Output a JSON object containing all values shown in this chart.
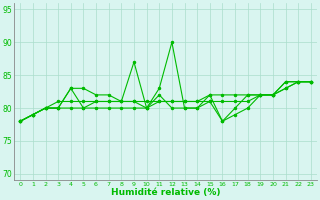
{
  "title": "",
  "xlabel": "Humidité relative (%)",
  "ylabel": "",
  "xlim": [
    -0.5,
    23.5
  ],
  "ylim": [
    69,
    96
  ],
  "yticks": [
    70,
    75,
    80,
    85,
    90,
    95
  ],
  "xticks": [
    0,
    1,
    2,
    3,
    4,
    5,
    6,
    7,
    8,
    9,
    10,
    11,
    12,
    13,
    14,
    15,
    16,
    17,
    18,
    19,
    20,
    21,
    22,
    23
  ],
  "bg_color": "#d9f5f0",
  "grid_color": "#aaddcc",
  "line_color": "#00bb00",
  "lines": [
    [
      78,
      79,
      80,
      80,
      83,
      83,
      82,
      82,
      81,
      87,
      80,
      83,
      90,
      80,
      80,
      81,
      78,
      79,
      80,
      82,
      82,
      84,
      84,
      84
    ],
    [
      78,
      79,
      80,
      80,
      83,
      80,
      81,
      81,
      81,
      81,
      80,
      82,
      80,
      80,
      80,
      82,
      78,
      80,
      82,
      82,
      82,
      84,
      84,
      84
    ],
    [
      78,
      79,
      80,
      81,
      81,
      81,
      81,
      81,
      81,
      81,
      81,
      81,
      81,
      81,
      81,
      81,
      81,
      81,
      81,
      82,
      82,
      83,
      84,
      84
    ],
    [
      78,
      79,
      80,
      80,
      80,
      80,
      80,
      80,
      80,
      80,
      80,
      81,
      81,
      81,
      81,
      82,
      82,
      82,
      82,
      82,
      82,
      83,
      84,
      84
    ]
  ]
}
